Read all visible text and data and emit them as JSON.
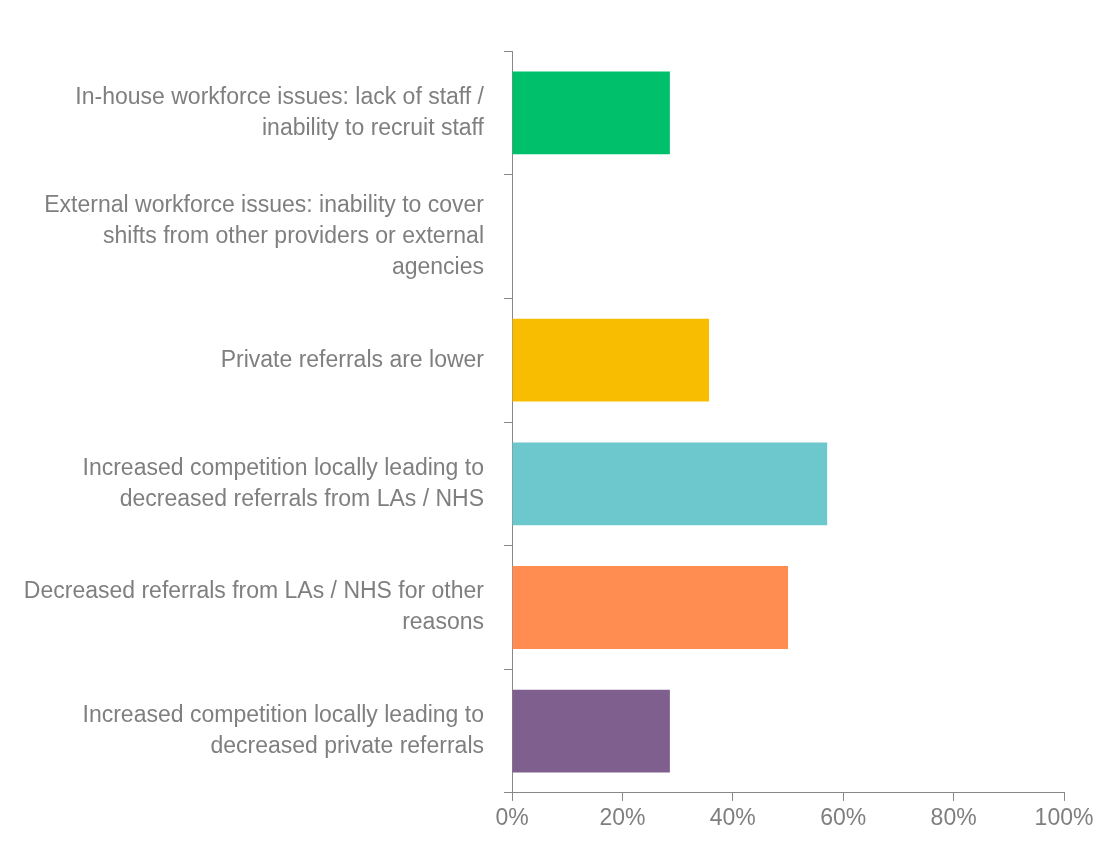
{
  "chart_data": {
    "type": "bar",
    "orientation": "horizontal",
    "categories": [
      "In-house workforce issues: lack of staff / inability to recruit staff",
      "External workforce issues: inability to cover shifts from other providers or external agencies",
      "Private referrals are lower",
      "Increased competition locally leading to decreased referrals from LAs / NHS",
      "Decreased referrals from LAs / NHS for other reasons",
      "Increased competition locally leading to decreased private referrals"
    ],
    "values": [
      28.6,
      0,
      35.7,
      57.1,
      50,
      28.6
    ],
    "colors": [
      "#00c06b",
      "#f8bd00",
      "#f8bd00",
      "#6cc8cc",
      "#ff8c50",
      "#7e5f8e"
    ],
    "xlim": [
      0,
      100
    ],
    "xticks": [
      {
        "value": 0,
        "label": "0%"
      },
      {
        "value": 20,
        "label": "20%"
      },
      {
        "value": 40,
        "label": "40%"
      },
      {
        "value": 60,
        "label": "60%"
      },
      {
        "value": 80,
        "label": "80%"
      },
      {
        "value": 100,
        "label": "100%"
      }
    ],
    "grid": false,
    "legend": false
  }
}
